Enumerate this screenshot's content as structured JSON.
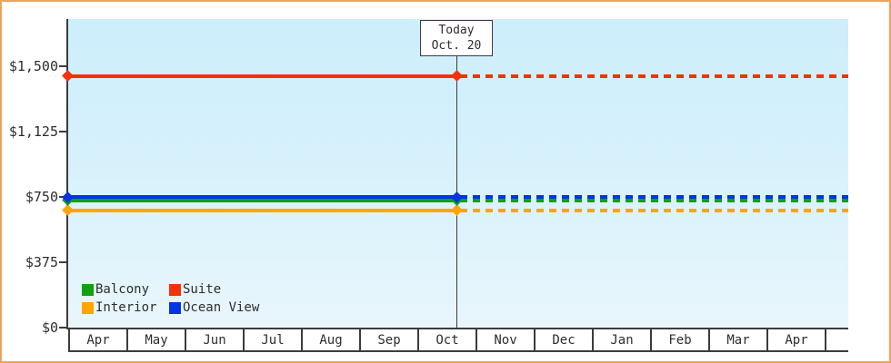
{
  "frame": {
    "border_color": "#eaa55c"
  },
  "today_box": {
    "line1": "Today",
    "line2": "Oct. 20"
  },
  "legend": {
    "items": [
      {
        "label": "Balcony",
        "color": "#11a011"
      },
      {
        "label": "Suite",
        "color": "#f43108"
      },
      {
        "label": "Interior",
        "color": "#ffa500"
      },
      {
        "label": "Ocean View",
        "color": "#0433e8"
      }
    ]
  },
  "chart_data": {
    "type": "line",
    "title": "",
    "xlabel": "",
    "ylabel": "",
    "categories": [
      "Apr",
      "May",
      "Jun",
      "Jul",
      "Aug",
      "Sep",
      "Oct",
      "Nov",
      "Dec",
      "Jan",
      "Feb",
      "Mar",
      "Apr"
    ],
    "y_ticks": [
      {
        "label": "$0",
        "value": 0
      },
      {
        "label": "$375",
        "value": 375
      },
      {
        "label": "$750",
        "value": 750
      },
      {
        "label": "$1,125",
        "value": 1125
      },
      {
        "label": "$1,500",
        "value": 1500
      }
    ],
    "ylim": [
      0,
      1770
    ],
    "series": [
      {
        "name": "Interior",
        "color": "#ffa500",
        "value": 675,
        "flat": true
      },
      {
        "name": "Balcony",
        "color": "#11a011",
        "value": 732,
        "flat": true
      },
      {
        "name": "Ocean View",
        "color": "#0433e8",
        "value": 750,
        "flat": true
      },
      {
        "name": "Suite",
        "color": "#f43108",
        "value": 1445,
        "flat": true
      }
    ],
    "today": {
      "label": "Today",
      "date": "Oct. 20",
      "month": "Oct",
      "day": 20
    },
    "style": {
      "solid_before_today": true,
      "dashed_after_today": true,
      "grid": false,
      "legend_position": "bottom-left-inside",
      "marker_shape": "diamond",
      "markers_at": [
        "series-start",
        "today"
      ]
    }
  }
}
